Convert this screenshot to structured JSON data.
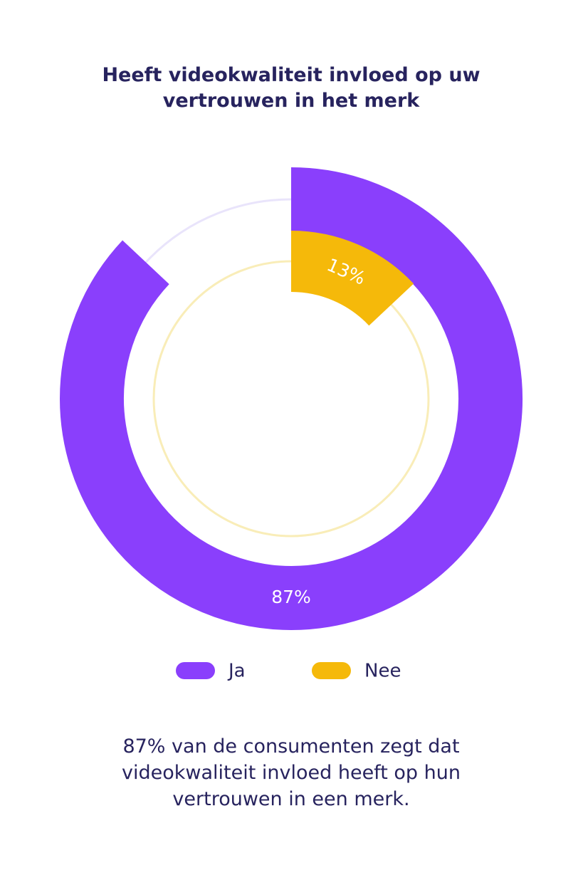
{
  "chart_data": {
    "type": "radial",
    "title": "Heeft videokwaliteit invloed op uw vertrouwen in het merk",
    "categories": [
      "Ja",
      "Nee"
    ],
    "values": [
      87,
      13
    ],
    "value_labels": [
      "87%",
      "13%"
    ],
    "colors": [
      "#8a3ffc",
      "#f5b90a"
    ],
    "track_colors": [
      "#e9e4fb",
      "#f9edb8"
    ],
    "caption": "87% van de consumenten zegt dat videokwaliteit invloed heeft op hun vertrouwen in een merk."
  }
}
